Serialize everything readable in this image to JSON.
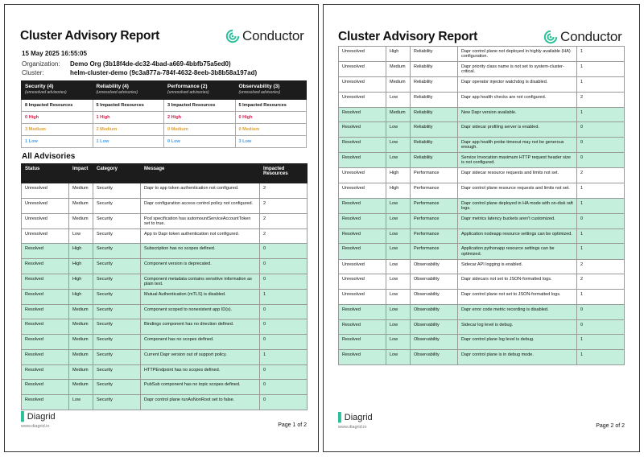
{
  "report_title": "Cluster Advisory Report",
  "brand": "Conductor",
  "date": "15 May 2025 16:55:05",
  "organization": {
    "label": "Organization:",
    "value": "Demo Org (3b18f4de-dc32-4bad-a669-4bbfb75a5ed0)"
  },
  "cluster": {
    "label": "Cluster:",
    "value": "helm-cluster-demo (9c3a877a-784f-4632-8eeb-3b8b58a197ad)"
  },
  "colors": {
    "high": "#d6204d",
    "medium": "#e0a030",
    "low": "#4a9ee8",
    "resolved_row": "#c4efdc",
    "header": "#1c1c1c",
    "accent": "#2bbf9a"
  },
  "summary": [
    {
      "title": "Security (4)",
      "sub": "(unresolved advisories)",
      "impacted": "8 Impacted Resources",
      "high": "0 High",
      "medium": "3 Medium",
      "low": "1 Low"
    },
    {
      "title": "Reliability (4)",
      "sub": "(unresolved advisories)",
      "impacted": "5 Impacted Resources",
      "high": "1 High",
      "medium": "2 Medium",
      "low": "1 Low"
    },
    {
      "title": "Performance (2)",
      "sub": "(unresolved advisories)",
      "impacted": "3 Impacted Resources",
      "high": "2 High",
      "medium": "0 Medium",
      "low": "0 Low"
    },
    {
      "title": "Observability (3)",
      "sub": "(unresolved advisories)",
      "impacted": "5 Impacted Resources",
      "high": "0 High",
      "medium": "0 Medium",
      "low": "3 Low"
    }
  ],
  "all_advisories_heading": "All Advisories",
  "columns": [
    "Status",
    "Impact",
    "Category",
    "Message",
    "Impacted Resources"
  ],
  "page1_rows": [
    [
      "Unresolved",
      "Medium",
      "Security",
      "Dapr to app token authentication not configured.",
      "2"
    ],
    [
      "Unresolved",
      "Medium",
      "Security",
      "Dapr configuration access control policy not configured.",
      "2"
    ],
    [
      "Unresolved",
      "Medium",
      "Security",
      "Pod specification has automountServiceAccountToken set to true.",
      "2"
    ],
    [
      "Unresolved",
      "Low",
      "Security",
      "App to Dapr token authentication not configured.",
      "2"
    ],
    [
      "Resolved",
      "High",
      "Security",
      "Subscription has no scopes defined.",
      "0"
    ],
    [
      "Resolved",
      "High",
      "Security",
      "Component version is deprecated.",
      "0"
    ],
    [
      "Resolved",
      "High",
      "Security",
      "Component metadata contains sensitive information as plain text.",
      "0"
    ],
    [
      "Resolved",
      "High",
      "Security",
      "Mutual Authentication (mTLS) is disabled.",
      "1"
    ],
    [
      "Resolved",
      "Medium",
      "Security",
      "Component scoped to nonexistent app ID(s).",
      "0"
    ],
    [
      "Resolved",
      "Medium",
      "Security",
      "Bindings component has no direction defined.",
      "0"
    ],
    [
      "Resolved",
      "Medium",
      "Security",
      "Component has no scopes defined.",
      "0"
    ],
    [
      "Resolved",
      "Medium",
      "Security",
      "Current Dapr version out of support policy.",
      "1"
    ],
    [
      "Resolved",
      "Medium",
      "Security",
      "HTTPEndpoint has no scopes defined.",
      "0"
    ],
    [
      "Resolved",
      "Medium",
      "Security",
      "PubSub component has no topic scopes defined.",
      "0"
    ],
    [
      "Resolved",
      "Low",
      "Security",
      "Dapr control plane runAsNonRoot set to false.",
      "0"
    ]
  ],
  "page2_rows": [
    [
      "Unresolved",
      "High",
      "Reliability",
      "Dapr control plane not deployed in highly available (HA) configuration.",
      "1"
    ],
    [
      "Unresolved",
      "Medium",
      "Reliability",
      "Dapr priority class name is not set to system-cluster-critical.",
      "1"
    ],
    [
      "Unresolved",
      "Medium",
      "Reliability",
      "Dapr operator injector watchdog is disabled.",
      "1"
    ],
    [
      "Unresolved",
      "Low",
      "Reliability",
      "Dapr app health checks are not configured.",
      "2"
    ],
    [
      "Resolved",
      "Medium",
      "Reliability",
      "New Dapr version available.",
      "1"
    ],
    [
      "Resolved",
      "Low",
      "Reliability",
      "Dapr sidecar profiling server is enabled.",
      "0"
    ],
    [
      "Resolved",
      "Low",
      "Reliability",
      "Dapr app health probe timeout may not be generous enough.",
      "0"
    ],
    [
      "Resolved",
      "Low",
      "Reliability",
      "Service Invocation maximum HTTP request header size is not configured.",
      "0"
    ],
    [
      "Unresolved",
      "High",
      "Performance",
      "Dapr sidecar resource requests and limits not set.",
      "2"
    ],
    [
      "Unresolved",
      "High",
      "Performance",
      "Dapr control plane resource requests and limits not set.",
      "1"
    ],
    [
      "Resolved",
      "Low",
      "Performance",
      "Dapr control plane deployed in HA mode with on-disk raft logs.",
      "1"
    ],
    [
      "Resolved",
      "Low",
      "Performance",
      "Dapr metrics latency buckets aren't customized.",
      "0"
    ],
    [
      "Resolved",
      "Low",
      "Performance",
      "Application nodeapp resource settings can be optimized.",
      "1"
    ],
    [
      "Resolved",
      "Low",
      "Performance",
      "Application pythonapp resource settings can be optimized.",
      "1"
    ],
    [
      "Unresolved",
      "Low",
      "Observability",
      "Sidecar API logging is enabled.",
      "2"
    ],
    [
      "Unresolved",
      "Low",
      "Observability",
      "Dapr sidecars not set to JSON-formatted logs.",
      "2"
    ],
    [
      "Unresolved",
      "Low",
      "Observability",
      "Dapr control plane not set to JSON-formatted logs.",
      "1"
    ],
    [
      "Resolved",
      "Low",
      "Observability",
      "Dapr error code metric recording is disabled.",
      "0"
    ],
    [
      "Resolved",
      "Low",
      "Observability",
      "Sidecar log level is debug.",
      "0"
    ],
    [
      "Resolved",
      "Low",
      "Observability",
      "Dapr control plane log level is debug.",
      "1"
    ],
    [
      "Resolved",
      "Low",
      "Observability",
      "Dapr control plane is in debug mode.",
      "1"
    ]
  ],
  "footer": {
    "logo": "Diagrid",
    "url": "www.diagrid.io",
    "page1": "Page 1 of 2",
    "page2": "Page 2 of 2"
  }
}
